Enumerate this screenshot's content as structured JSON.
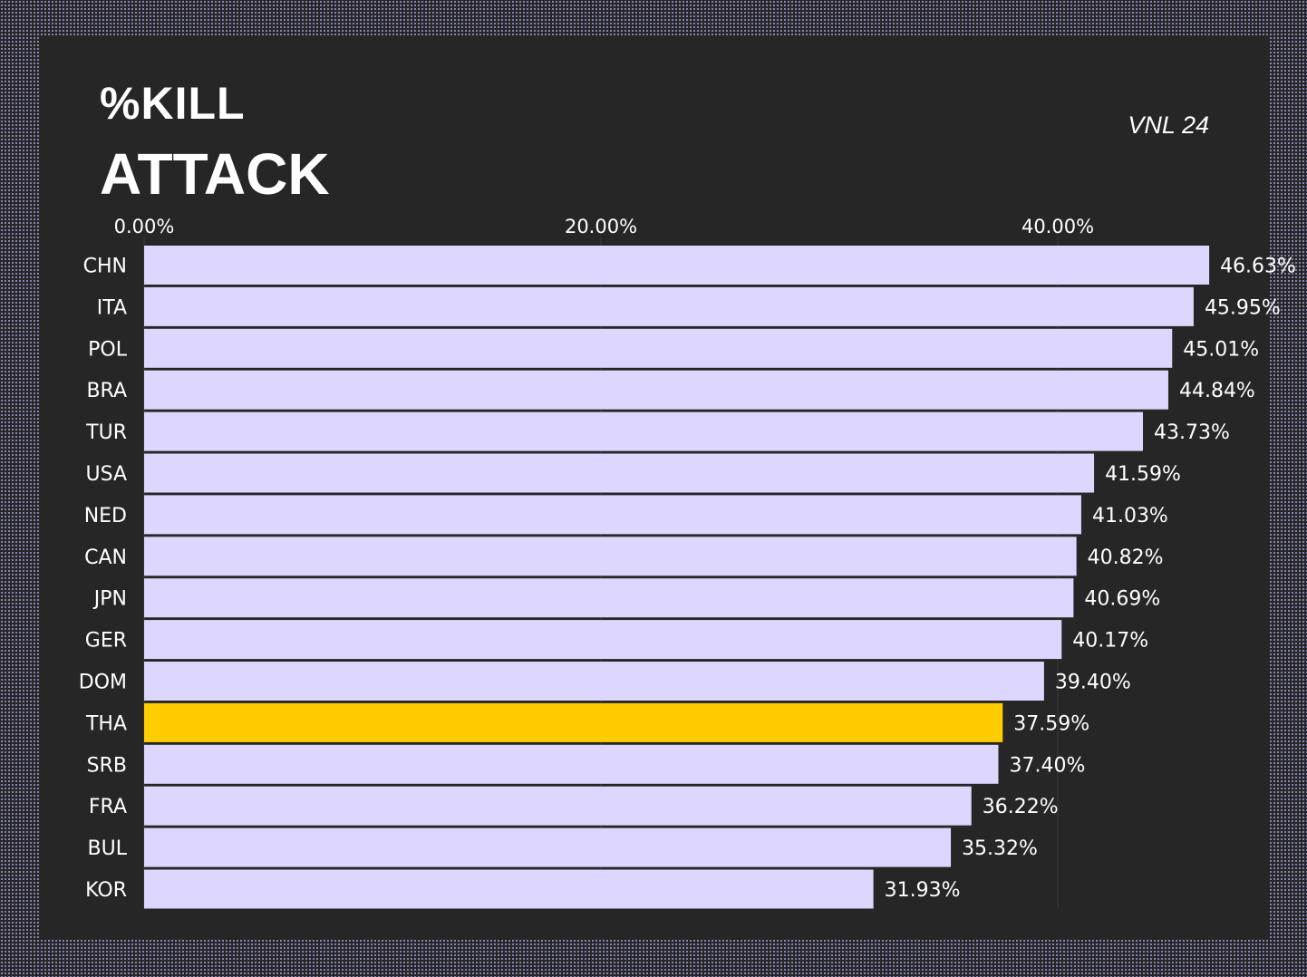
{
  "header": {
    "title_line1": "%KILL",
    "title_line2": "ATTACK",
    "subtitle": "VNL 24"
  },
  "colors": {
    "background": "#262626",
    "bar": "#ddd6fe",
    "highlight": "#ffcc00",
    "text": "#ffffff",
    "grid": "#3a3a3a"
  },
  "chart_data": {
    "type": "bar",
    "orientation": "horizontal",
    "xlim": [
      0,
      46.63
    ],
    "x_ticks": [
      0,
      20,
      40
    ],
    "x_tick_labels": [
      "0.00%",
      "20.00%",
      "40.00%"
    ],
    "grid": true,
    "categories": [
      "CHN",
      "ITA",
      "POL",
      "BRA",
      "TUR",
      "USA",
      "NED",
      "CAN",
      "JPN",
      "GER",
      "DOM",
      "THA",
      "SRB",
      "FRA",
      "BUL",
      "KOR"
    ],
    "values": [
      46.63,
      45.95,
      45.01,
      44.84,
      43.73,
      41.59,
      41.03,
      40.82,
      40.69,
      40.17,
      39.4,
      37.59,
      37.4,
      36.22,
      35.32,
      31.93
    ],
    "value_labels": [
      "46.63%",
      "45.95%",
      "45.01%",
      "44.84%",
      "43.73%",
      "41.59%",
      "41.03%",
      "40.82%",
      "40.69%",
      "40.17%",
      "39.40%",
      "37.59%",
      "37.40%",
      "36.22%",
      "35.32%",
      "31.93%"
    ],
    "highlight": "THA"
  }
}
